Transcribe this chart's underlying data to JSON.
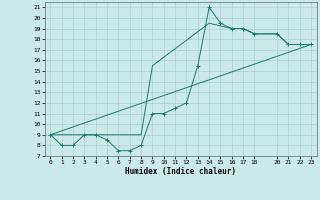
{
  "title": "",
  "xlabel": "Humidex (Indice chaleur)",
  "xlim": [
    -0.5,
    23.5
  ],
  "ylim": [
    7,
    21.5
  ],
  "yticks": [
    7,
    8,
    9,
    10,
    11,
    12,
    13,
    14,
    15,
    16,
    17,
    18,
    19,
    20,
    21
  ],
  "xticks": [
    0,
    1,
    2,
    3,
    4,
    5,
    6,
    7,
    8,
    9,
    10,
    11,
    12,
    13,
    14,
    15,
    16,
    17,
    18,
    20,
    21,
    22,
    23
  ],
  "background_color": "#cce9e9",
  "grid_color": "#aacece",
  "line_color": "#1a7a6e",
  "line1_x": [
    0,
    1,
    2,
    3,
    4,
    5,
    6,
    7,
    8,
    9,
    10,
    11,
    12,
    13,
    14,
    15,
    16,
    17,
    18,
    20,
    21,
    22,
    23
  ],
  "line1_y": [
    9,
    8,
    8,
    9,
    9,
    8.5,
    7.5,
    7.5,
    8,
    11,
    11,
    11.5,
    12,
    15.5,
    21,
    19.5,
    19,
    19,
    18.5,
    18.5,
    17.5,
    17.5,
    17.5
  ],
  "line2_x": [
    0,
    8,
    9,
    14,
    16,
    17,
    18,
    20,
    21,
    22,
    23
  ],
  "line2_y": [
    9,
    9,
    15.5,
    19.5,
    19,
    19,
    18.5,
    18.5,
    17.5,
    17.5,
    17.5
  ],
  "line3_x": [
    0,
    23
  ],
  "line3_y": [
    9,
    17.5
  ],
  "marker": "+"
}
